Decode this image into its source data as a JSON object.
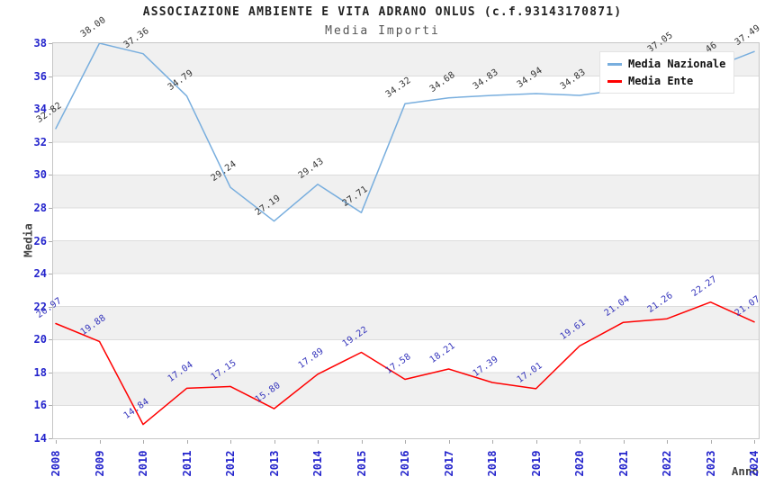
{
  "chart_data": {
    "type": "line",
    "title": "ASSOCIAZIONE AMBIENTE E VITA ADRANO ONLUS (c.f.93143170871)",
    "subtitle": "Media Importi",
    "xlabel": "Anno",
    "ylabel": "Media",
    "categories": [
      "2008",
      "2009",
      "2010",
      "2011",
      "2012",
      "2013",
      "2014",
      "2015",
      "2016",
      "2017",
      "2018",
      "2019",
      "2020",
      "2021",
      "2022",
      "2023",
      "2024"
    ],
    "ylim": [
      14,
      38
    ],
    "yticks": [
      38,
      36,
      34,
      32,
      30,
      28,
      26,
      24,
      22,
      20,
      18,
      16,
      14
    ],
    "grid": true,
    "plot_bands": "alternating 2-unit light-gray / white horizontal stripes, gray topmost (36-38)",
    "legend_position": "top-right",
    "series": [
      {
        "name": "Media Nazionale",
        "color": "#78aede",
        "label_color": "#333333",
        "values": [
          32.82,
          38.0,
          37.36,
          34.79,
          29.24,
          27.19,
          29.43,
          27.71,
          34.32,
          34.68,
          34.83,
          34.94,
          34.83,
          35.2,
          37.05,
          36.46,
          37.49
        ],
        "label_hidden_indices": [
          13
        ],
        "label_partial": {
          "index": 15,
          "visible_text": "46"
        }
      },
      {
        "name": "Media Ente",
        "color": "#ff0000",
        "label_color": "#3333bb",
        "values": [
          20.97,
          19.88,
          14.84,
          17.04,
          17.15,
          15.8,
          17.89,
          19.22,
          17.58,
          18.21,
          17.39,
          17.01,
          19.61,
          21.04,
          21.26,
          22.27,
          21.07
        ]
      }
    ]
  },
  "colors": {
    "background": "#ffffff",
    "band": "#f0f0f0",
    "gridline": "#dcdcdc",
    "plot_border": "#c6c6c6",
    "tick_label": "#2424cc",
    "axis_title": "#444444",
    "title": "#222222",
    "subtitle": "#555555",
    "legend_text": "#111111"
  }
}
